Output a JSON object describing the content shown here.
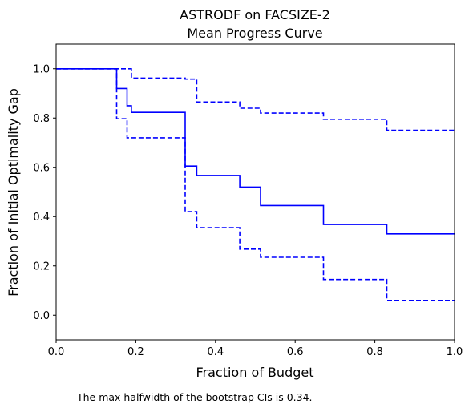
{
  "chart_data": {
    "type": "line",
    "title_line1": "ASTRODF on FACSIZE-2",
    "title_line2": "Mean Progress Curve",
    "xlabel": "Fraction of Budget",
    "ylabel": "Fraction of Initial Optimality Gap",
    "xlim": [
      0,
      1
    ],
    "ylim": [
      -0.1,
      1.1
    ],
    "xticks": [
      0.0,
      0.2,
      0.4,
      0.6,
      0.8,
      1.0
    ],
    "xtick_labels": [
      "0.0",
      "0.2",
      "0.4",
      "0.6",
      "0.8",
      "1.0"
    ],
    "yticks": [
      0.0,
      0.2,
      0.4,
      0.6,
      0.8,
      1.0
    ],
    "ytick_labels": [
      "0.0",
      "0.2",
      "0.4",
      "0.6",
      "0.8",
      "1.0"
    ],
    "grid": false,
    "series": [
      {
        "style": "solid",
        "color": "#0000ff",
        "x": [
          0.0,
          0.152,
          0.152,
          0.178,
          0.178,
          0.189,
          0.189,
          0.324,
          0.324,
          0.353,
          0.353,
          0.461,
          0.461,
          0.513,
          0.513,
          0.671,
          0.671,
          0.83,
          0.83,
          1.0
        ],
        "y": [
          1.0,
          1.0,
          0.92,
          0.92,
          0.85,
          0.85,
          0.823,
          0.823,
          0.605,
          0.605,
          0.567,
          0.567,
          0.52,
          0.52,
          0.445,
          0.445,
          0.368,
          0.368,
          0.33,
          0.33
        ]
      },
      {
        "style": "dashed",
        "color": "#0000ff",
        "x": [
          0.0,
          0.189,
          0.189,
          0.324,
          0.324,
          0.353,
          0.353,
          0.461,
          0.461,
          0.513,
          0.513,
          0.671,
          0.671,
          0.83,
          0.83,
          1.0
        ],
        "y": [
          1.0,
          1.0,
          0.962,
          0.962,
          0.958,
          0.958,
          0.865,
          0.865,
          0.84,
          0.84,
          0.82,
          0.82,
          0.795,
          0.795,
          0.75,
          0.75
        ]
      },
      {
        "style": "dashed",
        "color": "#0000ff",
        "x": [
          0.0,
          0.152,
          0.152,
          0.178,
          0.178,
          0.324,
          0.324,
          0.353,
          0.353,
          0.461,
          0.461,
          0.513,
          0.513,
          0.671,
          0.671,
          0.83,
          0.83,
          1.0
        ],
        "y": [
          1.0,
          1.0,
          0.797,
          0.797,
          0.72,
          0.72,
          0.42,
          0.42,
          0.355,
          0.355,
          0.268,
          0.268,
          0.235,
          0.235,
          0.145,
          0.145,
          0.06,
          0.06
        ]
      }
    ]
  },
  "note": "The max halfwidth of the bootstrap CIs is 0.34."
}
